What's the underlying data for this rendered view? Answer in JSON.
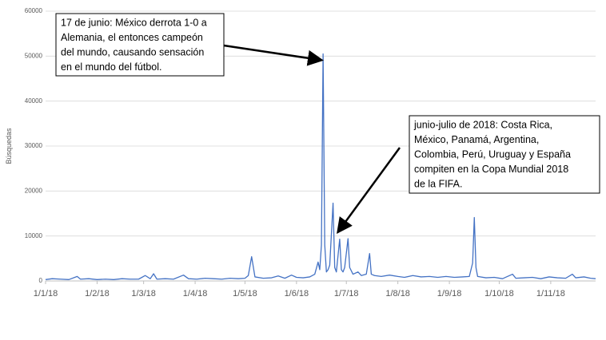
{
  "chart_data": {
    "type": "line",
    "y_label": "Búsquedas",
    "xlim": [
      "1/1/18",
      "28/11/18"
    ],
    "xticks": [
      "1/1/18",
      "1/2/18",
      "1/3/18",
      "1/4/18",
      "1/5/18",
      "1/6/18",
      "1/7/18",
      "1/8/18",
      "1/9/18",
      "1/10/18",
      "1/11/18"
    ],
    "ylim": [
      0,
      60000
    ],
    "yticks": [
      0,
      10000,
      20000,
      30000,
      40000,
      50000,
      60000
    ],
    "grid": true,
    "series": [
      {
        "color": "#4472c4",
        "x": [
          "1/1/18",
          "5/1/18",
          "10/1/18",
          "15/1/18",
          "20/1/18",
          "22/1/18",
          "27/1/18",
          "1/2/18",
          "6/2/18",
          "11/2/18",
          "16/2/18",
          "21/2/18",
          "26/2/18",
          "2/3/18",
          "5/3/18",
          "7/3/18",
          "9/3/18",
          "14/3/18",
          "19/3/18",
          "25/3/18",
          "28/3/18",
          "2/4/18",
          "7/4/18",
          "12/4/18",
          "17/4/18",
          "22/4/18",
          "27/4/18",
          "1/5/18",
          "3/5/18",
          "5/5/18",
          "7/5/18",
          "12/5/18",
          "17/5/18",
          "21/5/18",
          "25/5/18",
          "29/5/18",
          "1/6/18",
          "5/6/18",
          "9/6/18",
          "12/6/18",
          "14/6/18",
          "15/6/18",
          "16/6/18",
          "17/6/18",
          "18/6/18",
          "19/6/18",
          "20/6/18",
          "21/6/18",
          "23/6/18",
          "24/6/18",
          "25/6/18",
          "27/6/18",
          "28/6/18",
          "29/6/18",
          "30/6/18",
          "2/7/18",
          "3/7/18",
          "5/7/18",
          "8/7/18",
          "10/7/18",
          "13/7/18",
          "15/7/18",
          "16/7/18",
          "18/7/18",
          "22/7/18",
          "27/7/18",
          "1/8/18",
          "5/8/18",
          "10/8/18",
          "15/8/18",
          "20/8/18",
          "25/8/18",
          "30/8/18",
          "4/9/18",
          "9/9/18",
          "13/9/18",
          "15/9/18",
          "16/9/18",
          "17/9/18",
          "18/9/18",
          "23/9/18",
          "28/9/18",
          "3/10/18",
          "9/10/18",
          "11/10/18",
          "16/10/18",
          "21/10/18",
          "26/10/18",
          "31/10/18",
          "5/11/18",
          "10/11/18",
          "14/11/18",
          "16/11/18",
          "21/11/18",
          "25/11/18",
          "28/11/18"
        ],
        "values": [
          300,
          500,
          400,
          300,
          1000,
          400,
          500,
          300,
          400,
          300,
          500,
          400,
          400,
          1200,
          500,
          1600,
          400,
          500,
          400,
          1300,
          500,
          400,
          600,
          500,
          400,
          600,
          500,
          600,
          1200,
          5400,
          900,
          600,
          700,
          1100,
          600,
          1300,
          800,
          700,
          900,
          1500,
          4200,
          2500,
          8000,
          50500,
          8000,
          2000,
          2500,
          3500,
          17300,
          3000,
          2000,
          9300,
          2500,
          2000,
          3000,
          9400,
          3000,
          1500,
          2000,
          1200,
          1500,
          6100,
          1500,
          1200,
          1000,
          1300,
          1000,
          800,
          1200,
          900,
          1000,
          800,
          1000,
          800,
          900,
          1000,
          4000,
          14100,
          3000,
          1000,
          700,
          800,
          500,
          1500,
          600,
          700,
          800,
          500,
          900,
          700,
          600,
          1500,
          700,
          900,
          600,
          500
        ]
      }
    ],
    "annotations": [
      {
        "lines": [
          "17 de junio: México derrota 1-0 a",
          "Alemania, el entonces campeón",
          "del mundo, causando sensación",
          "en el mundo del fútbol."
        ]
      },
      {
        "lines": [
          "junio-julio de 2018: Costa Rica,",
          "México, Panamá, Argentina,",
          "Colombia, Perú, Uruguay y España",
          "compiten en la Copa Mundial 2018",
          "de la FIFA."
        ]
      }
    ]
  }
}
